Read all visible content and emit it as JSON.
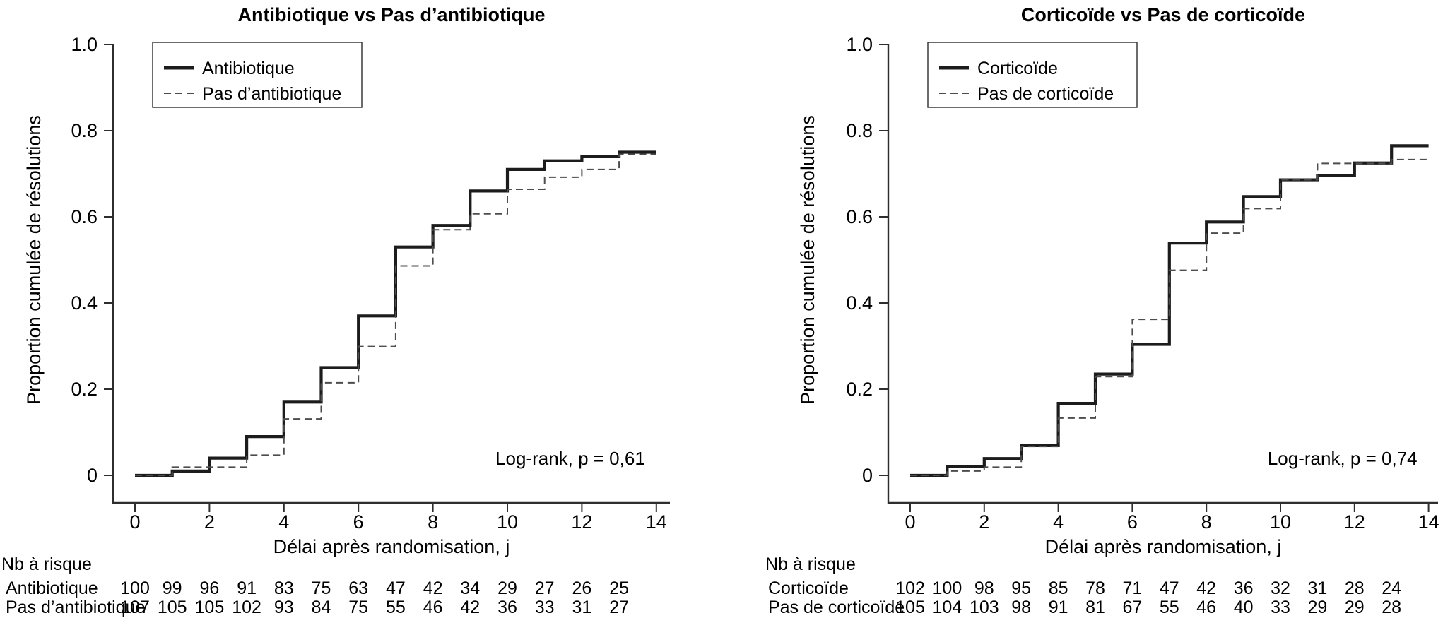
{
  "figure": {
    "ylabel": "Proportion cumulée de résolutions",
    "xlabel": "Délai après randomisation, j",
    "risk_header": "Nb à risque"
  },
  "chart_data": [
    {
      "type": "line",
      "variant": "step-cumulative-incidence",
      "title": "Antibiotique vs Pas d’antibiotique",
      "xlabel": "Délai après randomisation, j",
      "ylabel": "Proportion cumulée de résolutions",
      "xlim": [
        0,
        14
      ],
      "ylim": [
        0,
        1.0
      ],
      "x_ticks": [
        "0",
        "2",
        "4",
        "6",
        "8",
        "10",
        "12",
        "14"
      ],
      "y_ticks": [
        "1.0",
        "0.8",
        "0.6",
        "0.4",
        "0.2",
        "0"
      ],
      "grid": false,
      "legend_position": "top-left",
      "annotation": "Log-rank, p = 0,61",
      "days": [
        0,
        1,
        2,
        3,
        4,
        5,
        6,
        7,
        8,
        9,
        10,
        11,
        12,
        13
      ],
      "series": [
        {
          "name": "Antibiotique",
          "line": "solid",
          "values": [
            0,
            0.01,
            0.04,
            0.09,
            0.17,
            0.25,
            0.37,
            0.53,
            0.58,
            0.66,
            0.71,
            0.73,
            0.74,
            0.75
          ]
        },
        {
          "name": "Pas d’antibiotique",
          "line": "dashed",
          "values": [
            0,
            0.019,
            0.019,
            0.047,
            0.131,
            0.215,
            0.299,
            0.486,
            0.57,
            0.607,
            0.664,
            0.692,
            0.71,
            0.745
          ]
        }
      ],
      "risk_table": {
        "header": "Nb à risque",
        "rows": [
          {
            "label": "Antibiotique",
            "counts": [
              "100",
              "99",
              "96",
              "91",
              "83",
              "75",
              "63",
              "47",
              "42",
              "34",
              "29",
              "27",
              "26",
              "25"
            ]
          },
          {
            "label": "Pas d’antibiotique",
            "counts": [
              "107",
              "105",
              "105",
              "102",
              "93",
              "84",
              "75",
              "55",
              "46",
              "42",
              "36",
              "33",
              "31",
              "27"
            ]
          }
        ]
      }
    },
    {
      "type": "line",
      "variant": "step-cumulative-incidence",
      "title": "Corticoïde vs Pas de corticoïde",
      "xlabel": "Délai après randomisation, j",
      "ylabel": "Proportion cumulée de résolutions",
      "xlim": [
        0,
        14
      ],
      "ylim": [
        0,
        1.0
      ],
      "x_ticks": [
        "0",
        "2",
        "4",
        "6",
        "8",
        "10",
        "12",
        "14"
      ],
      "y_ticks": [
        "1.0",
        "0.8",
        "0.6",
        "0.4",
        "0.2",
        "0"
      ],
      "grid": false,
      "legend_position": "top-left",
      "annotation": "Log-rank, p = 0,74",
      "days": [
        0,
        1,
        2,
        3,
        4,
        5,
        6,
        7,
        8,
        9,
        10,
        11,
        12,
        13
      ],
      "series": [
        {
          "name": "Corticoïde",
          "line": "solid",
          "values": [
            0,
            0.02,
            0.039,
            0.069,
            0.167,
            0.235,
            0.304,
            0.539,
            0.588,
            0.647,
            0.686,
            0.696,
            0.725,
            0.765
          ]
        },
        {
          "name": "Pas de corticoïde",
          "line": "dashed",
          "values": [
            0,
            0.01,
            0.019,
            0.067,
            0.133,
            0.229,
            0.362,
            0.476,
            0.562,
            0.619,
            0.686,
            0.724,
            0.724,
            0.733
          ]
        }
      ],
      "risk_table": {
        "header": "Nb à risque",
        "rows": [
          {
            "label": "Corticoïde",
            "counts": [
              "102",
              "100",
              "98",
              "95",
              "85",
              "78",
              "71",
              "47",
              "42",
              "36",
              "32",
              "31",
              "28",
              "24"
            ]
          },
          {
            "label": "Pas de corticoïde",
            "counts": [
              "105",
              "104",
              "103",
              "98",
              "91",
              "81",
              "67",
              "55",
              "46",
              "40",
              "33",
              "29",
              "29",
              "28"
            ]
          }
        ]
      }
    }
  ]
}
